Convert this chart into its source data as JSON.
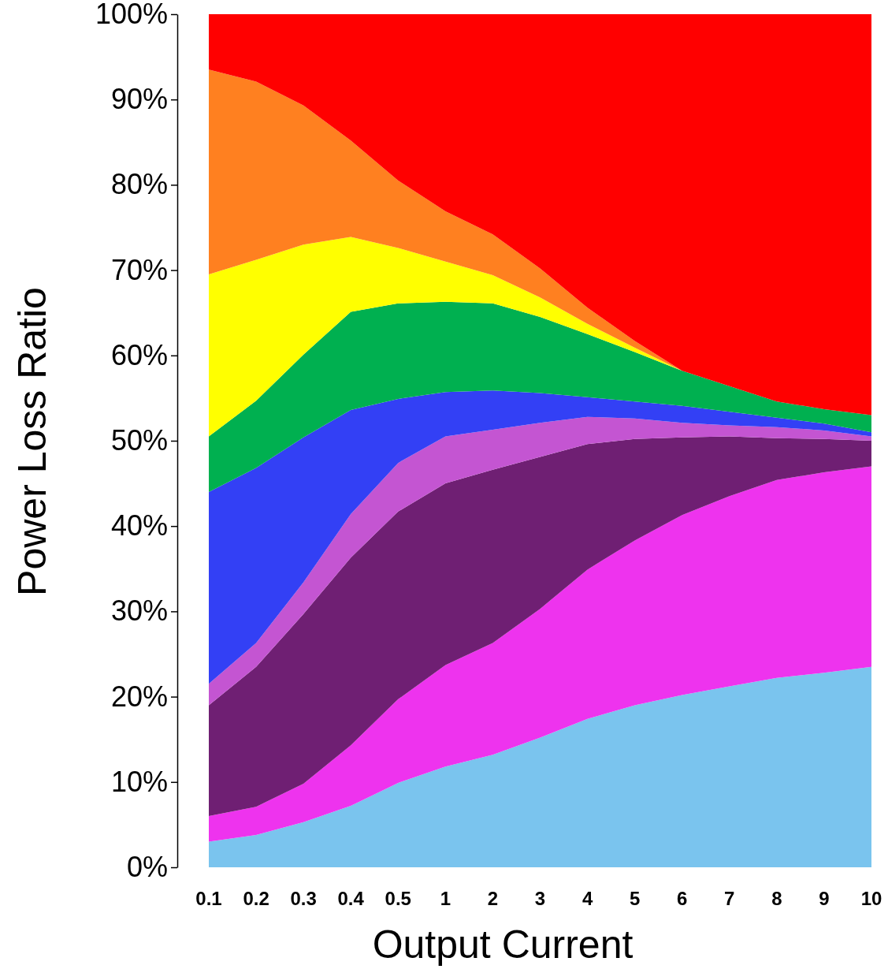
{
  "chart_data": {
    "type": "area",
    "stacked": true,
    "xlabel": "Output Current",
    "ylabel": "Power Loss Ratio",
    "categories": [
      "0.1",
      "0.2",
      "0.3",
      "0.4",
      "0.5",
      "1",
      "2",
      "3",
      "4",
      "5",
      "6",
      "7",
      "8",
      "9",
      "10"
    ],
    "ylim": [
      0,
      100
    ],
    "yticks": [
      {
        "value": 0,
        "label": "0%"
      },
      {
        "value": 10,
        "label": "10%"
      },
      {
        "value": 20,
        "label": "20%"
      },
      {
        "value": 30,
        "label": "30%"
      },
      {
        "value": 40,
        "label": "40%"
      },
      {
        "value": 50,
        "label": "50%"
      },
      {
        "value": 60,
        "label": "60%"
      },
      {
        "value": 70,
        "label": "70%"
      },
      {
        "value": 80,
        "label": "80%"
      },
      {
        "value": 90,
        "label": "90%"
      },
      {
        "value": 100,
        "label": "100%"
      }
    ],
    "grid": false,
    "series": [
      {
        "color": "#7ac4ee",
        "values": [
          3,
          3.8,
          5.3,
          7.2,
          9.9,
          11.8,
          13.2,
          15.2,
          17.4,
          19,
          20.2,
          21.2,
          22.2,
          22.8,
          23.5
        ]
      },
      {
        "color": "#ee33ee",
        "values": [
          3,
          3.3,
          4.5,
          7.1,
          9.8,
          11.9,
          13.1,
          15.1,
          17.5,
          19.3,
          21.1,
          22.3,
          23.2,
          23.5,
          23.5
        ]
      },
      {
        "color": "#6f1f73",
        "values": [
          13,
          16.4,
          19.9,
          22,
          22,
          21.3,
          20.3,
          17.8,
          14.7,
          11.9,
          9.1,
          7,
          4.9,
          3.9,
          3
        ]
      },
      {
        "color": "#c455d2",
        "values": [
          2.5,
          2.8,
          3.7,
          5.1,
          5.7,
          5.5,
          4.7,
          4,
          3.2,
          2.4,
          1.7,
          1.3,
          1.3,
          1,
          0.5
        ]
      },
      {
        "color": "#3340f5",
        "values": [
          22.5,
          20.5,
          17,
          12.2,
          7.5,
          5.2,
          4.6,
          3.5,
          2.3,
          2,
          2,
          1.6,
          1.1,
          0.8,
          0.5
        ]
      },
      {
        "color": "#00b050",
        "values": [
          6.5,
          7.9,
          9.7,
          11.5,
          11.2,
          10.6,
          10.2,
          8.9,
          7.4,
          5.8,
          4.1,
          3,
          1.9,
          1.7,
          2
        ]
      },
      {
        "color": "#ffff00",
        "values": [
          19,
          16.5,
          12.9,
          8.8,
          6.5,
          4.7,
          3.3,
          2.3,
          1.2,
          0.5,
          0,
          0,
          0,
          0,
          0
        ]
      },
      {
        "color": "#ff8020",
        "values": [
          24,
          20.9,
          16.3,
          11.3,
          7.9,
          5.9,
          4.8,
          3.4,
          1.9,
          0.8,
          0,
          0,
          0,
          0,
          0
        ]
      },
      {
        "color": "#ff0000",
        "values": [
          6.5,
          7.9,
          10.7,
          14.8,
          19.5,
          23.1,
          25.8,
          29.8,
          34.4,
          38.3,
          41.8,
          43.6,
          45.4,
          46.3,
          47
        ]
      }
    ]
  }
}
